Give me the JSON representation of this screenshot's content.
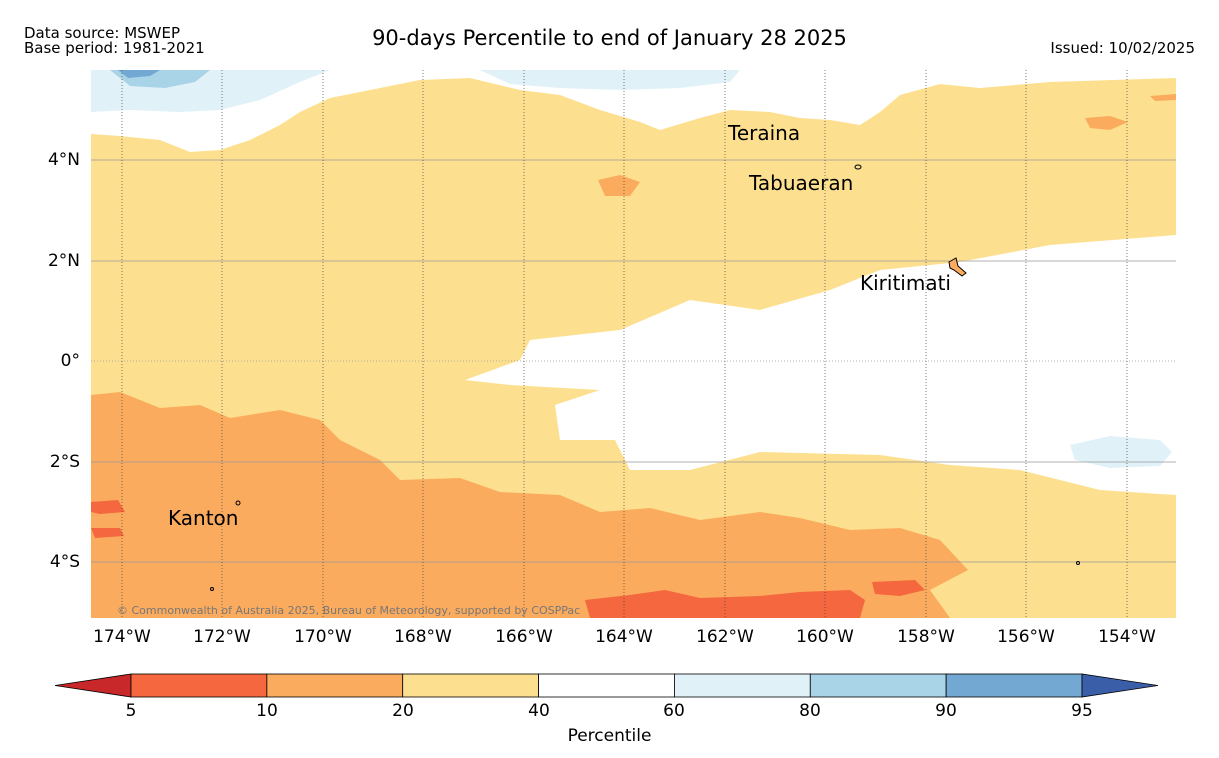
{
  "header": {
    "source": "Data source: MSWEP",
    "base_period": "Base period: 1981-2021",
    "title": "90-days Percentile to end of January 28 2025",
    "issued": "Issued: 10/02/2025"
  },
  "map": {
    "lon_labels": [
      "174°W",
      "172°W",
      "170°W",
      "168°W",
      "166°W",
      "164°W",
      "162°W",
      "160°W",
      "158°W",
      "156°W",
      "154°W"
    ],
    "lat_labels": [
      "4°N",
      "2°N",
      "0°",
      "2°S",
      "4°S"
    ],
    "islands": [
      "Teraina",
      "Tabuaeran",
      "Kiritimati",
      "Kanton"
    ],
    "copyright": "© Commonwealth of Australia 2025, Bureau of Meteorology, supported by COSPPac"
  },
  "colorbar": {
    "label": "Percentile",
    "ticks": [
      "5",
      "10",
      "20",
      "40",
      "60",
      "80",
      "90",
      "95"
    ],
    "colors": [
      "#c8282a",
      "#f4673f",
      "#fbab5e",
      "#fde08f",
      "#ffffff",
      "#e0f2f8",
      "#a9d3e6",
      "#72a8d2",
      "#3a5fa8"
    ]
  }
}
